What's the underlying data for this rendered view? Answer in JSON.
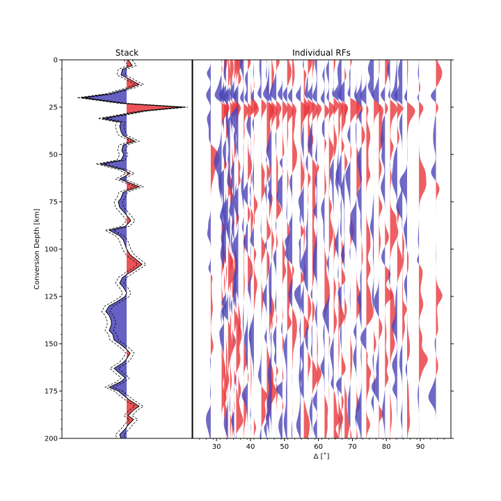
{
  "chart_data": [
    {
      "type": "area",
      "title": "Stack",
      "ylabel": "Conversion Depth [km]",
      "xlabel": "",
      "ylim": [
        200,
        0
      ],
      "yticks": [
        0,
        25,
        50,
        75,
        100,
        125,
        150,
        175,
        200
      ],
      "fill_positive": "#e8373c",
      "fill_negative": "#4b45b8",
      "confidence_band": "dashed",
      "depth": [
        0,
        3,
        5,
        8,
        10,
        13,
        15,
        18,
        20,
        23,
        25,
        27,
        29,
        31,
        33,
        35,
        38,
        40,
        43,
        45,
        48,
        50,
        53,
        55,
        58,
        60,
        63,
        65,
        67,
        69,
        70,
        73,
        75,
        78,
        80,
        83,
        85,
        88,
        90,
        93,
        95,
        98,
        100,
        103,
        105,
        108,
        110,
        113,
        115,
        118,
        120,
        123,
        125,
        128,
        130,
        133,
        135,
        138,
        140,
        143,
        145,
        148,
        150,
        153,
        155,
        158,
        160,
        163,
        165,
        168,
        170,
        173,
        175,
        178,
        180,
        183,
        185,
        188,
        190,
        193,
        195,
        198,
        200
      ],
      "amplitude": [
        0.02,
        0.08,
        -0.06,
        -0.08,
        0.03,
        0.18,
        0.04,
        -0.25,
        -0.65,
        -0.05,
        0.82,
        0.25,
        -0.05,
        -0.35,
        -0.08,
        -0.1,
        -0.08,
        -0.05,
        0.12,
        -0.05,
        -0.07,
        -0.04,
        -0.08,
        -0.38,
        -0.06,
        0.05,
        -0.1,
        0.04,
        0.18,
        0.02,
        -0.05,
        -0.08,
        -0.12,
        -0.1,
        -0.05,
        0.02,
        0.06,
        -0.02,
        -0.25,
        -0.1,
        -0.05,
        -0.02,
        0.0,
        0.05,
        0.12,
        0.22,
        0.15,
        0.02,
        -0.06,
        -0.1,
        -0.05,
        0.0,
        -0.02,
        -0.15,
        -0.25,
        -0.3,
        -0.25,
        -0.22,
        -0.22,
        -0.25,
        -0.2,
        -0.18,
        -0.1,
        0.0,
        0.05,
        0.0,
        -0.05,
        -0.18,
        -0.12,
        -0.02,
        -0.08,
        -0.25,
        -0.12,
        -0.02,
        0.05,
        0.18,
        0.1,
        0.02,
        0.1,
        0.02,
        -0.02,
        -0.1,
        -0.08
      ]
    },
    {
      "type": "area",
      "title": "Individual RFs",
      "xlabel": "Δ [˚]",
      "ylabel": "",
      "xlim": [
        23,
        99
      ],
      "xticks": [
        30,
        40,
        50,
        60,
        70,
        80,
        90
      ],
      "ylim": [
        200,
        0
      ],
      "fill_positive": "#e8373c",
      "fill_negative": "#4b45b8",
      "trace_distances_deg": [
        28.3,
        31.5,
        32.2,
        32.8,
        33.4,
        34.0,
        34.6,
        35.2,
        35.8,
        36.4,
        38.0,
        39.2,
        40.1,
        41.0,
        43.2,
        44.8,
        45.5,
        46.2,
        47.6,
        49.4,
        50.8,
        52.3,
        54.8,
        55.7,
        56.9,
        58.2,
        59.6,
        61.8,
        63.1,
        64.5,
        65.9,
        66.8,
        67.7,
        69.4,
        71.2,
        72.7,
        74.1,
        76.3,
        77.8,
        79.6,
        81.1,
        83.2,
        84.7,
        86.1,
        89.6,
        94.6
      ]
    }
  ]
}
